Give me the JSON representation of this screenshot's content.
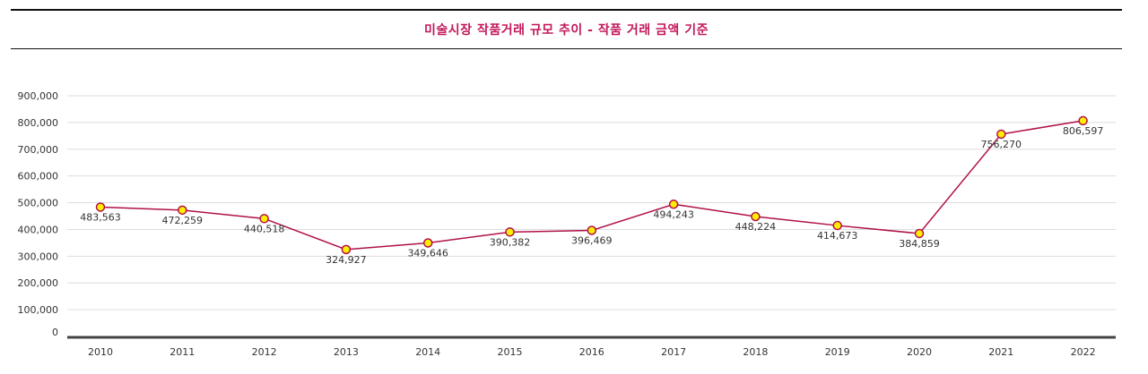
{
  "chart_data": {
    "type": "line",
    "title": "미술시장 작품거래 규모 추이 - 작품 거래 금액 기준",
    "xlabel": "",
    "ylabel": "",
    "ylim": [
      0,
      900000
    ],
    "y_ticks": [
      0,
      100000,
      200000,
      300000,
      400000,
      500000,
      600000,
      700000,
      800000,
      900000
    ],
    "y_tick_labels": [
      "0",
      "100,000",
      "200,000",
      "300,000",
      "400,000",
      "500,000",
      "600,000",
      "700,000",
      "800,000",
      "900,000"
    ],
    "categories": [
      "2010",
      "2011",
      "2012",
      "2013",
      "2014",
      "2015",
      "2016",
      "2017",
      "2018",
      "2019",
      "2020",
      "2021",
      "2022"
    ],
    "series": [
      {
        "name": "작품 거래 금액",
        "values": [
          483563,
          472259,
          440518,
          324927,
          349646,
          390382,
          396469,
          494243,
          448224,
          414673,
          384859,
          756270,
          806597
        ],
        "labels": [
          "483,563",
          "472,259",
          "440,518",
          "324,927",
          "349,646",
          "390,382",
          "396,469",
          "494,243",
          "448,224",
          "414,673",
          "384,859",
          "756,270",
          "806,597"
        ]
      }
    ],
    "grid": true,
    "legend": "none",
    "colors": {
      "line": "#b0104a",
      "marker_fill": "#ffee00",
      "marker_stroke": "#b0104a",
      "title": "#c2185b",
      "grid": "#dddddd",
      "axis": "#444444"
    }
  }
}
